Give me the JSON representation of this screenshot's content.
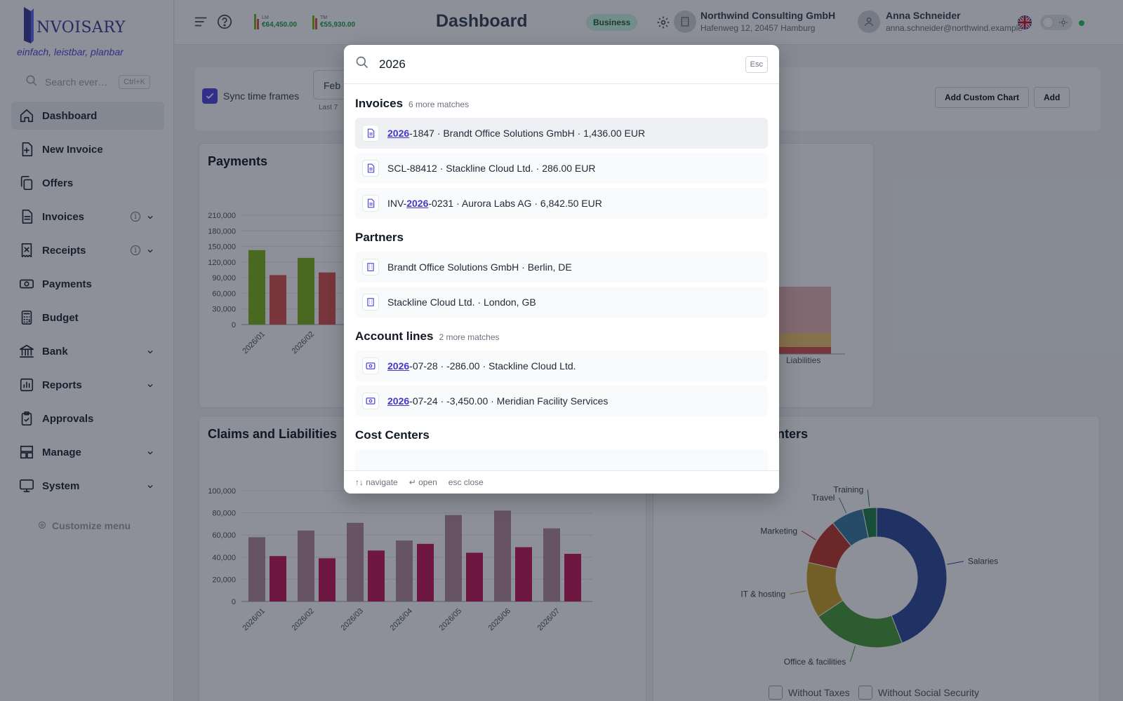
{
  "app": {
    "logo_text": "NVOISARY",
    "slogan": "einfach, leistbar, planbar",
    "search_placeholder": "Search ever…",
    "search_shortcut": "Ctrl+K",
    "customize_label": "Customize menu"
  },
  "nav": [
    {
      "label": "Dashboard",
      "icon": "home-icon",
      "active": true,
      "info": false,
      "chevron": false
    },
    {
      "label": "New Invoice",
      "icon": "file-plus-icon",
      "active": false,
      "info": false,
      "chevron": false
    },
    {
      "label": "Offers",
      "icon": "copy-icon",
      "active": false,
      "info": false,
      "chevron": false
    },
    {
      "label": "Invoices",
      "icon": "document-icon",
      "active": false,
      "info": true,
      "chevron": true
    },
    {
      "label": "Receipts",
      "icon": "receipt-icon",
      "active": false,
      "info": true,
      "chevron": true
    },
    {
      "label": "Payments",
      "icon": "money-icon",
      "active": false,
      "info": false,
      "chevron": false
    },
    {
      "label": "Budget",
      "icon": "calculator-icon",
      "active": false,
      "info": false,
      "chevron": false
    },
    {
      "label": "Bank",
      "icon": "bank-icon",
      "active": false,
      "info": false,
      "chevron": true
    },
    {
      "label": "Reports",
      "icon": "chart-icon",
      "active": false,
      "info": false,
      "chevron": true
    },
    {
      "label": "Approvals",
      "icon": "clipboard-check-icon",
      "active": false,
      "info": false,
      "chevron": false
    },
    {
      "label": "Manage",
      "icon": "layout-icon",
      "active": false,
      "info": false,
      "chevron": true
    },
    {
      "label": "System",
      "icon": "monitor-icon",
      "active": false,
      "info": false,
      "chevron": true
    }
  ],
  "topbar": {
    "title": "Dashboard",
    "plan_badge": "Business",
    "stat_lm_label": "LM",
    "stat_lm_value": "€64,450.00",
    "stat_tm_label": "TM",
    "stat_tm_value": "€55,930.00",
    "company_name": "Northwind Consulting GmbH",
    "company_address": "Hafenweg 12, 20457 Hamburg",
    "user_name": "Anna Schneider",
    "user_email": "anna.schneider@northwind.example"
  },
  "filters": {
    "sync_label": "Sync time frames",
    "date_value": "Feb",
    "date_hint": "Last 7",
    "add_custom_chart": "Add Custom Chart",
    "add": "Add"
  },
  "cards": {
    "payments_title": "Payments",
    "claims_title": "Claims and Liabilities",
    "cost_centers_title": "centers",
    "liabilities_label": "Liabilities",
    "without_taxes": "Without Taxes",
    "without_social": "Without Social Security"
  },
  "chart_data": [
    {
      "type": "bar",
      "title": "Payments",
      "categories": [
        "2026/01",
        "2026/02"
      ],
      "series": [
        {
          "values": [
            143000,
            128000
          ],
          "color": "#7cb518"
        },
        {
          "values": [
            95000,
            100000
          ],
          "color": "#d9534f"
        }
      ],
      "ylim": [
        0,
        210000
      ],
      "yticks": [
        "0",
        "30,000",
        "60,000",
        "90,000",
        "120,000",
        "150,000",
        "180,000",
        "210,000"
      ]
    },
    {
      "type": "bar",
      "title": "Claims and Liabilities",
      "categories": [
        "2026/01",
        "2026/02",
        "2026/03",
        "2026/04",
        "2026/05",
        "2026/06",
        "2026/07"
      ],
      "series": [
        {
          "values": [
            58000,
            64000,
            71000,
            55000,
            78000,
            82000,
            66000
          ],
          "color": "#b58a9a"
        },
        {
          "values": [
            41000,
            39000,
            46000,
            52000,
            44000,
            49000,
            43000
          ],
          "color": "#c2185b"
        }
      ],
      "ylim": [
        0,
        100000
      ],
      "yticks": [
        "0",
        "20,000",
        "40,000",
        "60,000",
        "80,000",
        "100,000"
      ]
    },
    {
      "type": "pie",
      "labels": [
        "Salaries",
        "Office & facilities",
        "IT & hosting",
        "Marketing",
        "Travel",
        "Training"
      ],
      "values": [
        41,
        20,
        12,
        10,
        7,
        3
      ],
      "colors": [
        "#2f4a9c",
        "#4a9c3a",
        "#c9a227",
        "#c0392b",
        "#3a7ca5",
        "#1e7f4a"
      ]
    }
  ],
  "search": {
    "query": "2026",
    "esc_label": "Esc",
    "footer_navigate": "↑↓ navigate",
    "footer_open": "↵ open",
    "footer_close": "esc close",
    "groups": {
      "invoices": {
        "title": "Invoices",
        "more": "6 more matches"
      },
      "partners": {
        "title": "Partners",
        "more": ""
      },
      "account_lines": {
        "title": "Account lines",
        "more": "2 more matches"
      },
      "cost_centers": {
        "title": "Cost Centers",
        "more": ""
      }
    },
    "invoices": [
      {
        "pre": "",
        "hl": "2026",
        "post": "-1847 · Brandt Office Solutions GmbH · 1,436.00 EUR"
      },
      {
        "pre": "SCL-88412 · Stackline Cloud Ltd. · 286.00 EUR",
        "hl": "",
        "post": ""
      },
      {
        "pre": "INV-",
        "hl": "2026",
        "post": "-0231 · Aurora Labs AG · 6,842.50 EUR"
      }
    ],
    "partners": [
      {
        "pre": "Brandt Office Solutions GmbH · Berlin, DE",
        "hl": "",
        "post": ""
      },
      {
        "pre": "Stackline Cloud Ltd. · London, GB",
        "hl": "",
        "post": ""
      }
    ],
    "account_lines": [
      {
        "pre": "",
        "hl": "2026",
        "post": "-07-28 · -286.00 · Stackline Cloud Ltd."
      },
      {
        "pre": "",
        "hl": "2026",
        "post": "-07-24 · -3,450.00 · Meridian Facility Services"
      }
    ]
  }
}
